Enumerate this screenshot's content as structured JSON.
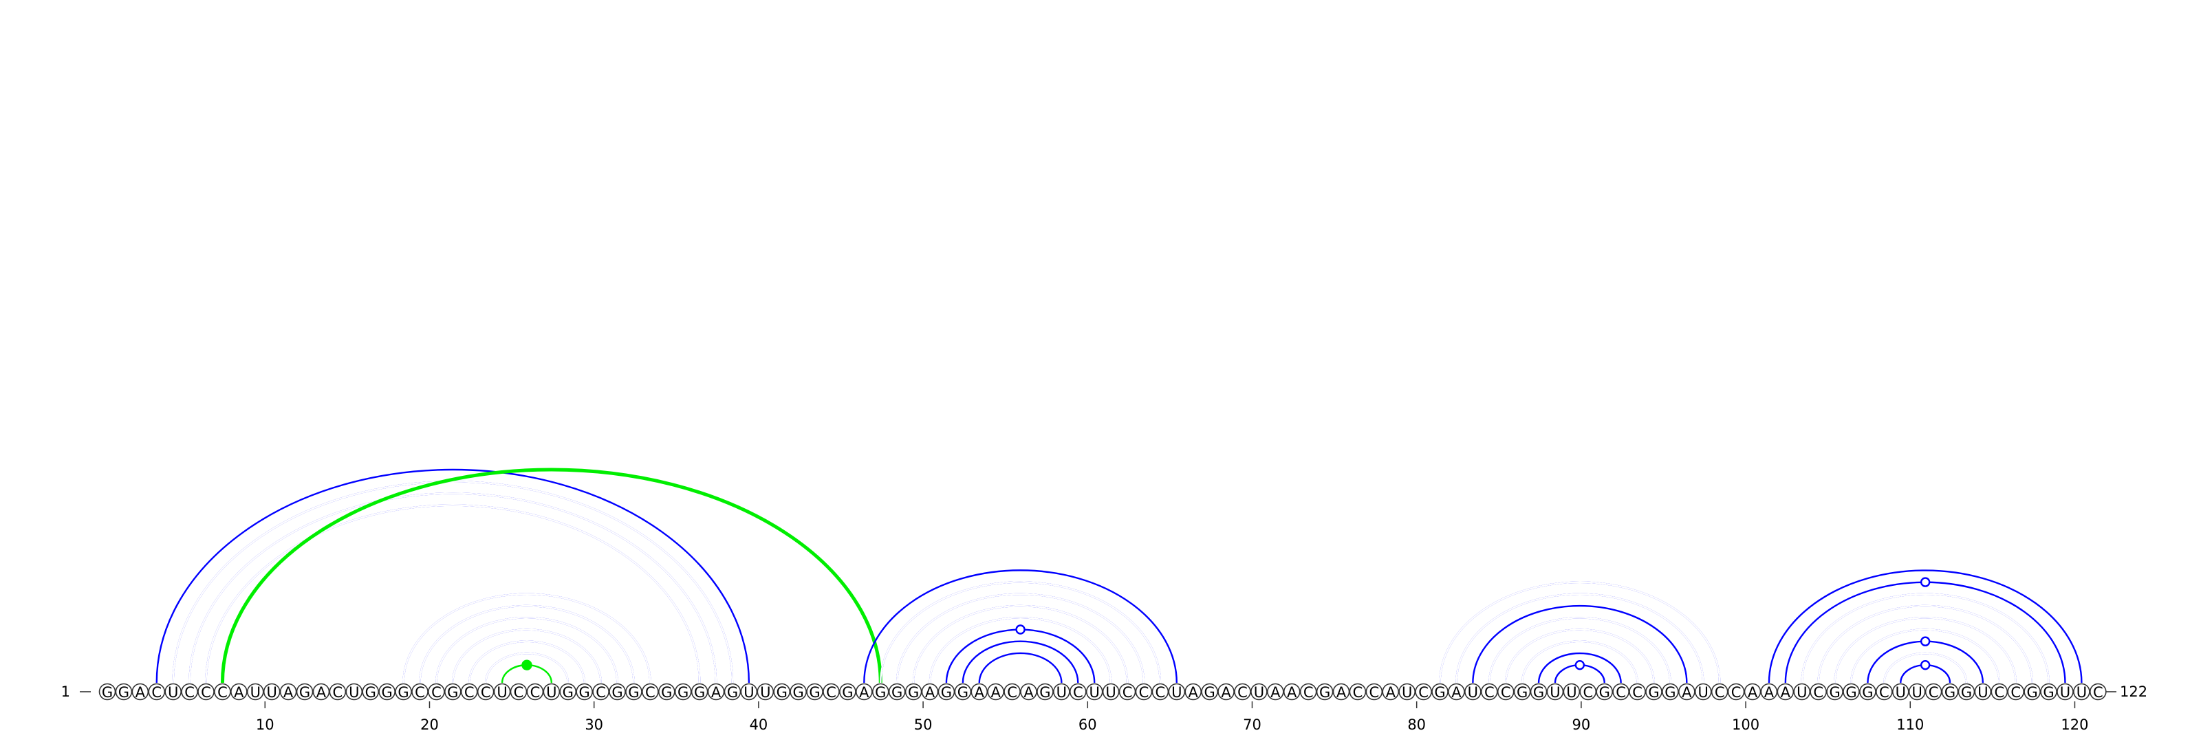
{
  "sequence": "GGACUCCCAUUAGACUGGGCCGCCUCCUGGCGGCGGGAGUUGGGCGAGGGAGGAACAGUCUUCCCUAGACUAACGACCAUCGAUCCGGUUCGCCGGAUCCAAAUCGGGCUUCGGUCCGGUUC",
  "start_label": "1",
  "end_label": "122",
  "ticks": [
    10,
    20,
    30,
    40,
    50,
    60,
    70,
    80,
    90,
    100,
    110,
    120
  ],
  "colors": {
    "canonical_pair": "#0000ff",
    "highlight_pair": "#00ee00",
    "backbone": "#333333"
  },
  "pairs": [
    {
      "i": 4,
      "j": 40,
      "style": "single",
      "color": "blue"
    },
    {
      "i": 5,
      "j": 39,
      "style": "double",
      "color": "blue"
    },
    {
      "i": 6,
      "j": 38,
      "style": "double",
      "color": "blue"
    },
    {
      "i": 7,
      "j": 37,
      "style": "double",
      "color": "blue"
    },
    {
      "i": 8,
      "j": 48,
      "style": "thick",
      "color": "green"
    },
    {
      "i": 19,
      "j": 34,
      "style": "double",
      "color": "blue"
    },
    {
      "i": 20,
      "j": 33,
      "style": "double",
      "color": "blue"
    },
    {
      "i": 21,
      "j": 32,
      "style": "double",
      "color": "blue"
    },
    {
      "i": 22,
      "j": 31,
      "style": "double",
      "color": "blue"
    },
    {
      "i": 23,
      "j": 30,
      "style": "double",
      "color": "blue"
    },
    {
      "i": 24,
      "j": 29,
      "style": "double",
      "color": "blue"
    },
    {
      "i": 25,
      "j": 28,
      "style": "gu",
      "color": "green"
    },
    {
      "i": 47,
      "j": 66,
      "style": "single",
      "color": "blue"
    },
    {
      "i": 48,
      "j": 65,
      "style": "double",
      "color": "blue"
    },
    {
      "i": 49,
      "j": 64,
      "style": "double",
      "color": "blue"
    },
    {
      "i": 50,
      "j": 63,
      "style": "double",
      "color": "blue"
    },
    {
      "i": 51,
      "j": 62,
      "style": "double",
      "color": "blue"
    },
    {
      "i": 52,
      "j": 61,
      "style": "gu",
      "color": "blue"
    },
    {
      "i": 53,
      "j": 60,
      "style": "single",
      "color": "blue"
    },
    {
      "i": 54,
      "j": 59,
      "style": "single",
      "color": "blue"
    },
    {
      "i": 82,
      "j": 99,
      "style": "double",
      "color": "blue"
    },
    {
      "i": 83,
      "j": 98,
      "style": "double",
      "color": "blue"
    },
    {
      "i": 84,
      "j": 97,
      "style": "single",
      "color": "blue"
    },
    {
      "i": 85,
      "j": 96,
      "style": "double",
      "color": "blue"
    },
    {
      "i": 86,
      "j": 95,
      "style": "double",
      "color": "blue"
    },
    {
      "i": 87,
      "j": 94,
      "style": "double",
      "color": "blue"
    },
    {
      "i": 88,
      "j": 93,
      "style": "single",
      "color": "blue"
    },
    {
      "i": 89,
      "j": 92,
      "style": "gu",
      "color": "blue"
    },
    {
      "i": 102,
      "j": 121,
      "style": "single",
      "color": "blue"
    },
    {
      "i": 103,
      "j": 120,
      "style": "gu",
      "color": "blue"
    },
    {
      "i": 104,
      "j": 119,
      "style": "double",
      "color": "blue"
    },
    {
      "i": 105,
      "j": 118,
      "style": "double",
      "color": "blue"
    },
    {
      "i": 106,
      "j": 117,
      "style": "double",
      "color": "blue"
    },
    {
      "i": 107,
      "j": 116,
      "style": "double",
      "color": "blue"
    },
    {
      "i": 108,
      "j": 115,
      "style": "gu",
      "color": "blue"
    },
    {
      "i": 109,
      "j": 114,
      "style": "double",
      "color": "blue"
    },
    {
      "i": 110,
      "j": 113,
      "style": "gu",
      "color": "blue"
    }
  ]
}
